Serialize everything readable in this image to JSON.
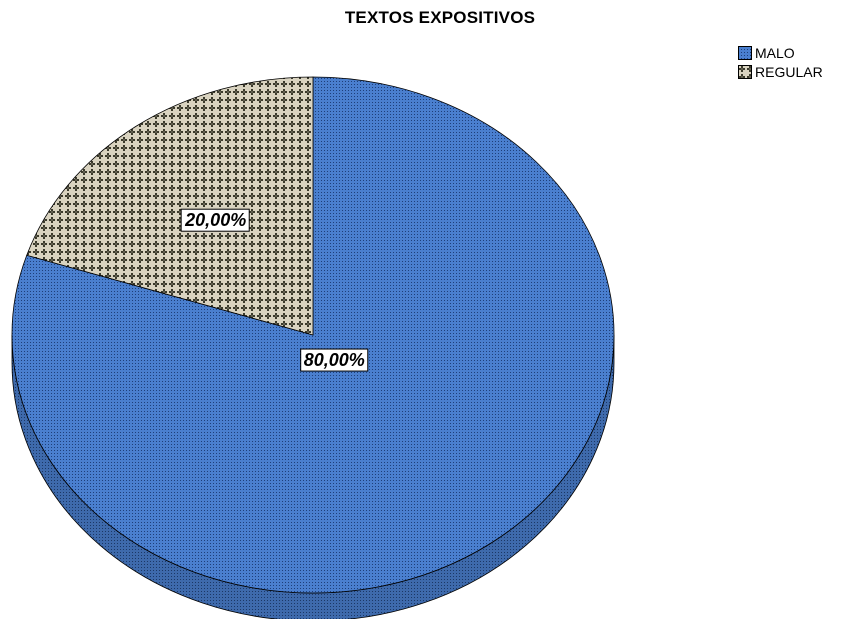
{
  "chart_data": {
    "type": "pie",
    "title": "TEXTOS EXPOSITIVOS",
    "categories": [
      "MALO",
      "REGULAR"
    ],
    "values": [
      80.0,
      20.0
    ],
    "value_labels": [
      "80,00%",
      "20,00%"
    ],
    "colors": [
      "#4a7fcf",
      "#d9d3c0"
    ],
    "legend_position": "top-right",
    "style": "3d"
  }
}
